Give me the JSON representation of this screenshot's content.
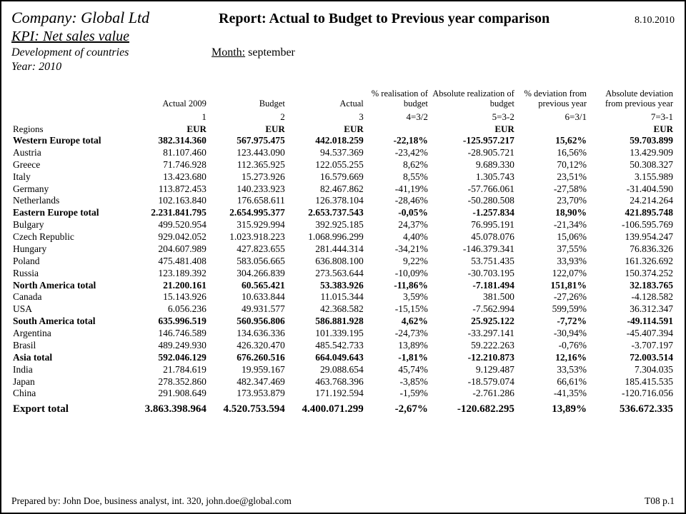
{
  "header": {
    "company": "Company: Global Ltd",
    "report": "Report: Actual to Budget to Previous year comparison",
    "date": "8.10.2010",
    "kpi": "KPI: Net sales value",
    "dev": "Development of countries",
    "month_label": "Month:",
    "month_value": " september",
    "year": "Year: 2010"
  },
  "columns": {
    "h": [
      "",
      "Actual 2009",
      "Budget",
      "Actual",
      "% realisation of budget",
      "Absolute realization of budget",
      "% deviation from previous year",
      "Absolute deviation from previous year"
    ],
    "idx": [
      "",
      "1",
      "2",
      "3",
      "4=3/2",
      "5=3-2",
      "6=3/1",
      "7=3-1"
    ],
    "unit": [
      "Regions",
      "EUR",
      "EUR",
      "EUR",
      "",
      "EUR",
      "",
      "EUR"
    ]
  },
  "rows": [
    {
      "t": "region",
      "c": [
        "Western Europe total",
        "382.314.360",
        "567.975.475",
        "442.018.259",
        "-22,18%",
        "-125.957.217",
        "15,62%",
        "59.703.899"
      ]
    },
    {
      "t": "data",
      "c": [
        "Austria",
        "81.107.460",
        "123.443.090",
        "94.537.369",
        "-23,42%",
        "-28.905.721",
        "16,56%",
        "13.429.909"
      ]
    },
    {
      "t": "data",
      "c": [
        "Greece",
        "71.746.928",
        "112.365.925",
        "122.055.255",
        "8,62%",
        "9.689.330",
        "70,12%",
        "50.308.327"
      ]
    },
    {
      "t": "data",
      "c": [
        "Italy",
        "13.423.680",
        "15.273.926",
        "16.579.669",
        "8,55%",
        "1.305.743",
        "23,51%",
        "3.155.989"
      ]
    },
    {
      "t": "data",
      "c": [
        "Germany",
        "113.872.453",
        "140.233.923",
        "82.467.862",
        "-41,19%",
        "-57.766.061",
        "-27,58%",
        "-31.404.590"
      ]
    },
    {
      "t": "data",
      "c": [
        "Netherlands",
        "102.163.840",
        "176.658.611",
        "126.378.104",
        "-28,46%",
        "-50.280.508",
        "23,70%",
        "24.214.264"
      ]
    },
    {
      "t": "region",
      "c": [
        "Eastern Europe total",
        "2.231.841.795",
        "2.654.995.377",
        "2.653.737.543",
        "-0,05%",
        "-1.257.834",
        "18,90%",
        "421.895.748"
      ]
    },
    {
      "t": "data",
      "c": [
        "Bulgary",
        "499.520.954",
        "315.929.994",
        "392.925.185",
        "24,37%",
        "76.995.191",
        "-21,34%",
        "-106.595.769"
      ]
    },
    {
      "t": "data",
      "c": [
        "Czech Republic",
        "929.042.052",
        "1.023.918.223",
        "1.068.996.299",
        "4,40%",
        "45.078.076",
        "15,06%",
        "139.954.247"
      ]
    },
    {
      "t": "data",
      "c": [
        "Hungary",
        "204.607.989",
        "427.823.655",
        "281.444.314",
        "-34,21%",
        "-146.379.341",
        "37,55%",
        "76.836.326"
      ]
    },
    {
      "t": "data",
      "c": [
        "Poland",
        "475.481.408",
        "583.056.665",
        "636.808.100",
        "9,22%",
        "53.751.435",
        "33,93%",
        "161.326.692"
      ]
    },
    {
      "t": "data",
      "c": [
        "Russia",
        "123.189.392",
        "304.266.839",
        "273.563.644",
        "-10,09%",
        "-30.703.195",
        "122,07%",
        "150.374.252"
      ]
    },
    {
      "t": "region",
      "c": [
        "North America total",
        "21.200.161",
        "60.565.421",
        "53.383.926",
        "-11,86%",
        "-7.181.494",
        "151,81%",
        "32.183.765"
      ]
    },
    {
      "t": "data",
      "c": [
        "Canada",
        "15.143.926",
        "10.633.844",
        "11.015.344",
        "3,59%",
        "381.500",
        "-27,26%",
        "-4.128.582"
      ]
    },
    {
      "t": "data",
      "c": [
        "USA",
        "6.056.236",
        "49.931.577",
        "42.368.582",
        "-15,15%",
        "-7.562.994",
        "599,59%",
        "36.312.347"
      ]
    },
    {
      "t": "region",
      "c": [
        "South America total",
        "635.996.519",
        "560.956.806",
        "586.881.928",
        "4,62%",
        "25.925.122",
        "-7,72%",
        "-49.114.591"
      ]
    },
    {
      "t": "data",
      "c": [
        "Argentina",
        "146.746.589",
        "134.636.336",
        "101.339.195",
        "-24,73%",
        "-33.297.141",
        "-30,94%",
        "-45.407.394"
      ]
    },
    {
      "t": "data",
      "c": [
        "Brasil",
        "489.249.930",
        "426.320.470",
        "485.542.733",
        "13,89%",
        "59.222.263",
        "-0,76%",
        "-3.707.197"
      ]
    },
    {
      "t": "region",
      "c": [
        "Asia total",
        "592.046.129",
        "676.260.516",
        "664.049.643",
        "-1,81%",
        "-12.210.873",
        "12,16%",
        "72.003.514"
      ]
    },
    {
      "t": "data",
      "c": [
        "India",
        "21.784.619",
        "19.959.167",
        "29.088.654",
        "45,74%",
        "9.129.487",
        "33,53%",
        "7.304.035"
      ]
    },
    {
      "t": "data",
      "c": [
        "Japan",
        "278.352.860",
        "482.347.469",
        "463.768.396",
        "-3,85%",
        "-18.579.074",
        "66,61%",
        "185.415.535"
      ]
    },
    {
      "t": "data",
      "c": [
        "China",
        "291.908.649",
        "173.953.879",
        "171.192.594",
        "-1,59%",
        "-2.761.286",
        "-41,35%",
        "-120.716.056"
      ]
    },
    {
      "t": "grand",
      "c": [
        "Export total",
        "3.863.398.964",
        "4.520.753.594",
        "4.400.071.299",
        "-2,67%",
        "-120.682.295",
        "13,89%",
        "536.672.335"
      ]
    }
  ],
  "footer": {
    "prepared": "Prepared by: John Doe, business analyst, int. 320, john.doe@global.com",
    "page": "T08  p.1"
  }
}
